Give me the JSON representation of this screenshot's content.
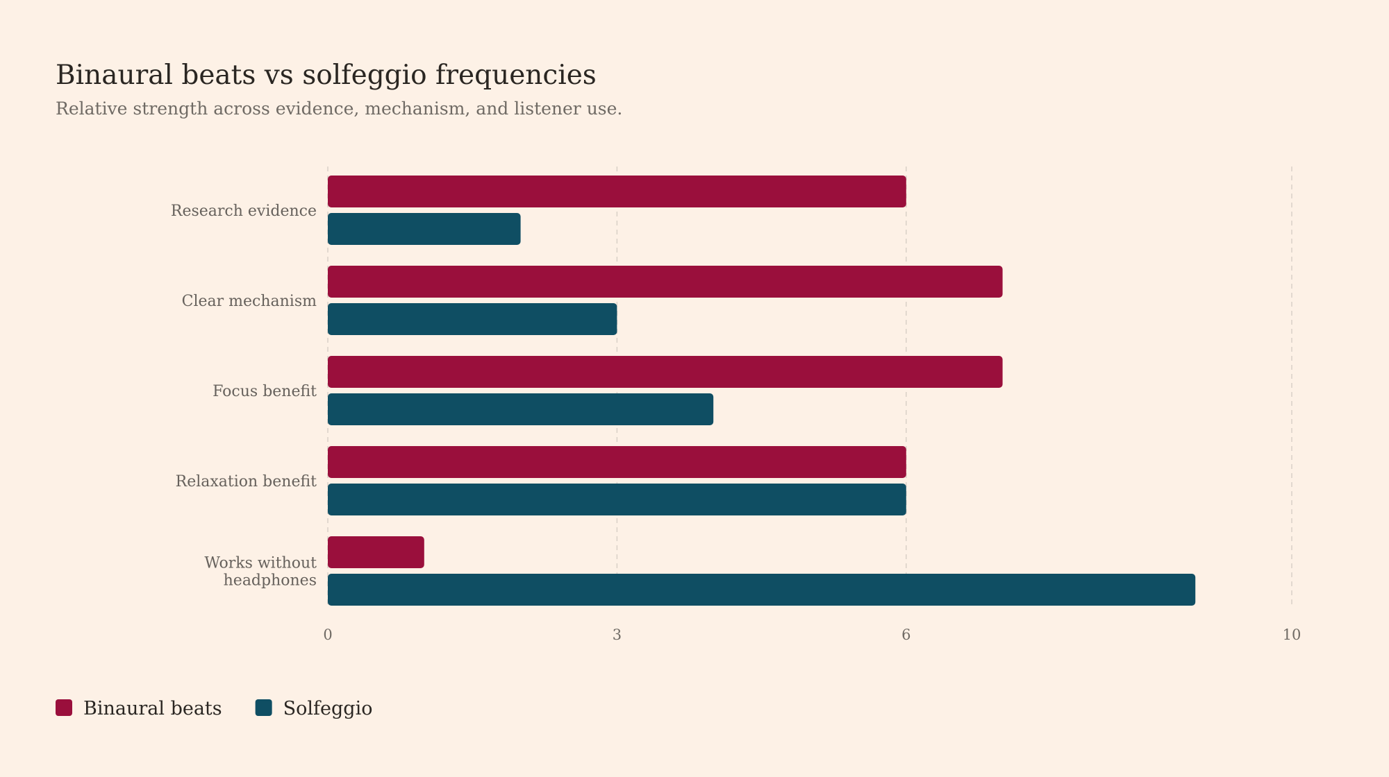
{
  "chart_data": {
    "type": "bar",
    "orientation": "horizontal",
    "title": "Binaural beats vs solfeggio frequencies",
    "subtitle": "Relative strength across evidence, mechanism, and listener use.",
    "categories": [
      [
        "Research evidence"
      ],
      [
        "Clear mechanism"
      ],
      [
        "Focus benefit"
      ],
      [
        "Relaxation benefit"
      ],
      [
        "Works without",
        "headphones"
      ]
    ],
    "series": [
      {
        "name": "Binaural beats",
        "color": "#9a0f3c",
        "values": [
          6,
          7,
          7,
          6,
          1
        ]
      },
      {
        "name": "Solfeggio",
        "color": "#0f4e63",
        "values": [
          2,
          3,
          4,
          6,
          9
        ]
      }
    ],
    "xlim": [
      0,
      10
    ],
    "xticks": [
      0,
      3,
      6,
      10
    ],
    "grid": true,
    "legend": "bottom-left"
  }
}
